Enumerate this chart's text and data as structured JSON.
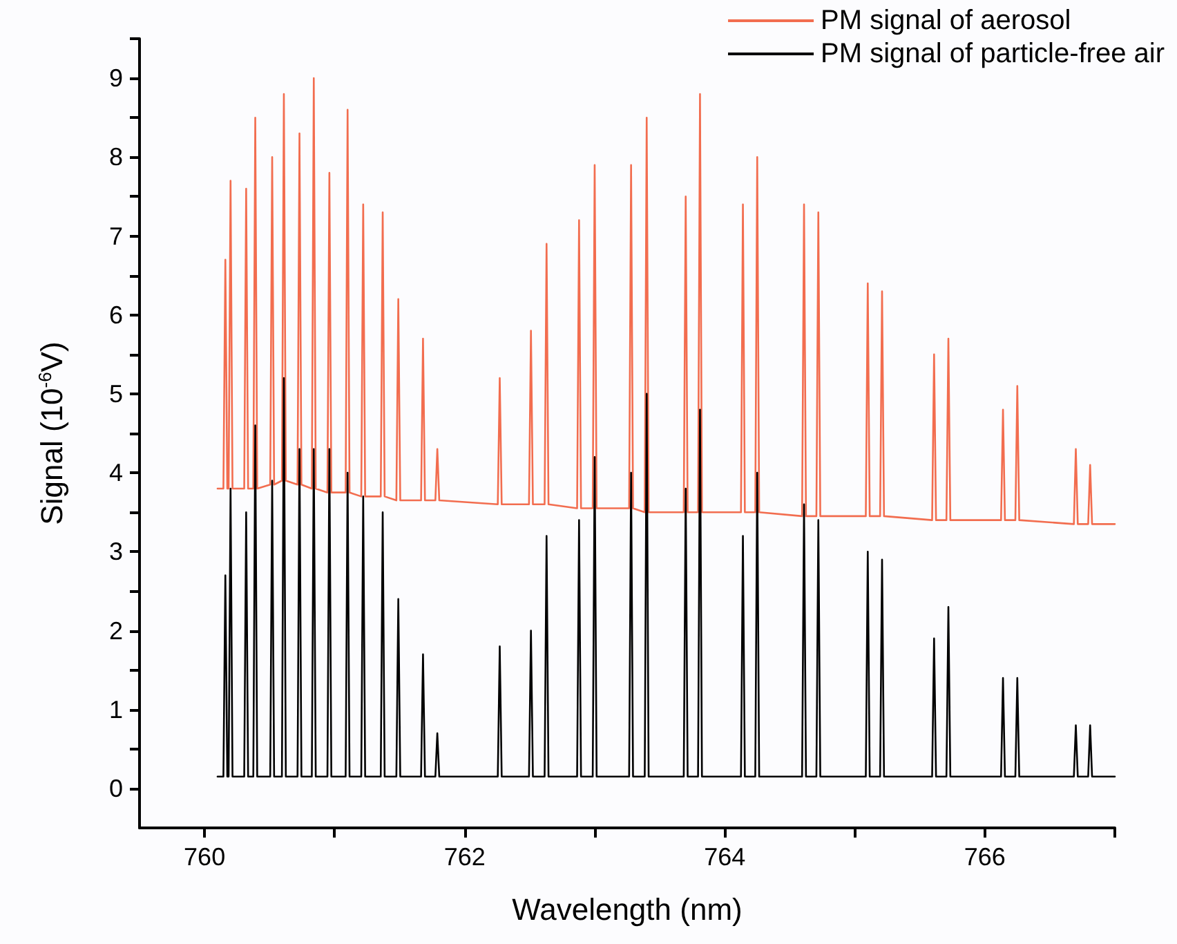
{
  "chart_data": {
    "type": "line",
    "xlabel": "Wavelength (nm)",
    "ylabel": "Signal (10$^{-6}$V)",
    "xlim": [
      759.5,
      767
    ],
    "xticks": [
      760,
      {
        "value": 761,
        "label": null
      },
      762,
      {
        "value": 763,
        "label": null
      },
      764,
      {
        "value": 765,
        "label": null
      },
      766,
      {
        "value": 767,
        "label": null
      }
    ],
    "ylim": [
      -0.5,
      9.5
    ],
    "yticks": [
      0,
      {
        "value": 0.5,
        "label": null
      },
      1,
      {
        "value": 1.5,
        "label": null
      },
      2,
      {
        "value": 2.5,
        "label": null
      },
      3,
      {
        "value": 3.5,
        "label": null
      },
      4,
      {
        "value": 4.5,
        "label": null
      },
      5,
      {
        "value": 5.5,
        "label": null
      },
      6,
      {
        "value": 6.5,
        "label": null
      },
      7,
      {
        "value": 7.5,
        "label": null
      },
      8,
      {
        "value": 8.5,
        "label": null
      },
      9,
      {
        "value": 9.5,
        "label": null
      }
    ],
    "grid": false,
    "legend": "top right",
    "marker": "none",
    "line_style": "solid",
    "x": [
      760.1,
      760.145,
      760.16,
      760.175,
      760.185,
      760.2,
      760.215,
      760.305,
      760.32,
      760.335,
      760.375,
      760.39,
      760.405,
      760.505,
      760.52,
      760.535,
      760.595,
      760.61,
      760.625,
      760.715,
      760.73,
      760.745,
      760.825,
      760.84,
      760.855,
      760.945,
      760.96,
      760.975,
      761.085,
      761.1,
      761.115,
      761.205,
      761.22,
      761.235,
      761.355,
      761.37,
      761.385,
      761.475,
      761.49,
      761.505,
      761.665,
      761.68,
      761.695,
      761.775,
      761.79,
      761.805,
      762.255,
      762.27,
      762.285,
      762.495,
      762.51,
      762.525,
      762.615,
      762.63,
      762.645,
      762.865,
      762.88,
      762.895,
      762.985,
      763,
      763.015,
      763.265,
      763.28,
      763.295,
      763.385,
      763.4,
      763.415,
      763.685,
      763.7,
      763.715,
      763.795,
      763.81,
      763.825,
      764.125,
      764.14,
      764.155,
      764.235,
      764.25,
      764.265,
      764.595,
      764.61,
      764.625,
      764.705,
      764.72,
      764.735,
      765.085,
      765.1,
      765.115,
      765.195,
      765.21,
      765.225,
      765.595,
      765.61,
      765.625,
      765.705,
      765.72,
      765.735,
      766.125,
      766.14,
      766.155,
      766.235,
      766.25,
      766.265,
      766.685,
      766.7,
      766.715,
      766.795,
      766.81,
      766.825,
      767
    ],
    "series": [
      {
        "name": "PM signal of aerosol",
        "color": "#f26d4f",
        "values": [
          3.8,
          3.8,
          6.7,
          3.8,
          3.8,
          7.7,
          3.8,
          3.8,
          7.6,
          3.8,
          3.8,
          8.5,
          3.8,
          3.85,
          8,
          3.85,
          3.9,
          8.8,
          3.9,
          3.85,
          8.3,
          3.85,
          3.8,
          9,
          3.8,
          3.75,
          7.8,
          3.75,
          3.75,
          8.6,
          3.75,
          3.7,
          7.4,
          3.7,
          3.7,
          7.3,
          3.7,
          3.65,
          6.2,
          3.65,
          3.65,
          5.7,
          3.65,
          3.65,
          4.3,
          3.65,
          3.6,
          5.2,
          3.6,
          3.6,
          5.8,
          3.6,
          3.6,
          6.9,
          3.6,
          3.55,
          7.2,
          3.55,
          3.55,
          7.9,
          3.55,
          3.55,
          7.9,
          3.55,
          3.5,
          8.5,
          3.5,
          3.5,
          7.5,
          3.5,
          3.5,
          8.8,
          3.5,
          3.5,
          7.4,
          3.5,
          3.5,
          8,
          3.5,
          3.45,
          7.4,
          3.45,
          3.45,
          7.3,
          3.45,
          3.45,
          6.4,
          3.45,
          3.45,
          6.3,
          3.45,
          3.4,
          5.5,
          3.4,
          3.4,
          5.7,
          3.4,
          3.4,
          4.8,
          3.4,
          3.4,
          5.1,
          3.4,
          3.35,
          4.3,
          3.35,
          3.35,
          4.1,
          3.35,
          3.35
        ]
      },
      {
        "name": "PM signal of particle-free air",
        "color": "#000000",
        "values": [
          0.15,
          0.15,
          2.7,
          0.15,
          0.15,
          3.8,
          0.15,
          0.15,
          3.5,
          0.15,
          0.15,
          4.6,
          0.15,
          0.15,
          3.9,
          0.15,
          0.15,
          5.2,
          0.15,
          0.15,
          4.3,
          0.15,
          0.15,
          4.3,
          0.15,
          0.15,
          4.3,
          0.15,
          0.15,
          4,
          0.15,
          0.15,
          3.7,
          0.15,
          0.15,
          3.5,
          0.15,
          0.15,
          2.4,
          0.15,
          0.15,
          1.7,
          0.15,
          0.15,
          0.7,
          0.15,
          0.15,
          1.8,
          0.15,
          0.15,
          2,
          0.15,
          0.15,
          3.2,
          0.15,
          0.15,
          3.4,
          0.15,
          0.15,
          4.2,
          0.15,
          0.15,
          4,
          0.15,
          0.15,
          5,
          0.15,
          0.15,
          3.8,
          0.15,
          0.15,
          4.8,
          0.15,
          0.15,
          3.2,
          0.15,
          0.15,
          4,
          0.15,
          0.15,
          3.6,
          0.15,
          0.15,
          3.4,
          0.15,
          0.15,
          3,
          0.15,
          0.15,
          2.9,
          0.15,
          0.15,
          1.9,
          0.15,
          0.15,
          2.3,
          0.15,
          0.15,
          1.4,
          0.15,
          0.15,
          1.4,
          0.15,
          0.15,
          0.8,
          0.15,
          0.15,
          0.8,
          0.15,
          0.15
        ]
      }
    ]
  }
}
